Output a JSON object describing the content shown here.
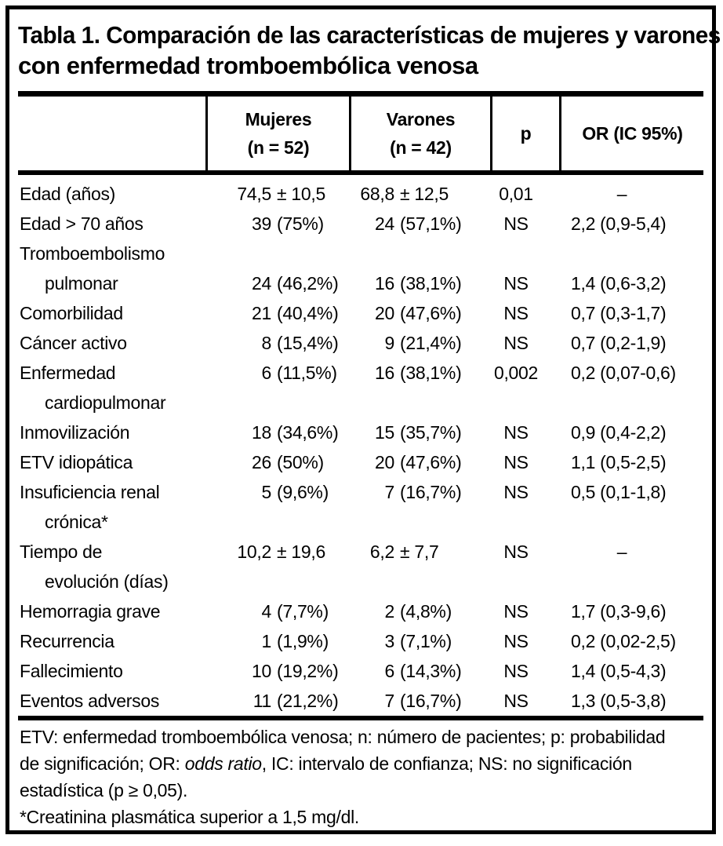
{
  "colors": {
    "text": "#000000",
    "background": "#ffffff",
    "rule": "#000000"
  },
  "title": {
    "lines": [
      "Tabla 1. Comparación de las características de mujeres y varones",
      "con enfermedad tromboembólica venosa"
    ]
  },
  "header": {
    "row_label_column": "",
    "columns": [
      {
        "id": "mujeres",
        "label_lines": [
          "Mujeres",
          "(n = 52)"
        ]
      },
      {
        "id": "varones",
        "label_lines": [
          "Varones",
          "(n = 42)"
        ]
      },
      {
        "id": "p",
        "label_lines": [
          "p"
        ]
      },
      {
        "id": "or",
        "label_lines": [
          "OR (IC 95%)"
        ]
      }
    ]
  },
  "rows": [
    {
      "label": "Edad (años)",
      "indent": false,
      "mujeres": {
        "num": "74,5",
        "rest": "± 10,5"
      },
      "varones": {
        "num": "68,8",
        "rest": "± 12,5"
      },
      "p": "0,01",
      "or": "–",
      "or_is_dash": true
    },
    {
      "label": "Edad > 70 años",
      "indent": false,
      "mujeres": {
        "num": "39",
        "rest": "(75%)"
      },
      "varones": {
        "num": "24",
        "rest": "(57,1%)"
      },
      "p": "NS",
      "or": "2,2 (0,9-5,4)"
    },
    {
      "label": "Tromboembolismo",
      "indent": false
    },
    {
      "label": "pulmonar",
      "indent": true,
      "mujeres": {
        "num": "24",
        "rest": "(46,2%)"
      },
      "varones": {
        "num": "16",
        "rest": "(38,1%)"
      },
      "p": "NS",
      "or": "1,4 (0,6-3,2)"
    },
    {
      "label": "Comorbilidad",
      "indent": false,
      "mujeres": {
        "num": "21",
        "rest": "(40,4%)"
      },
      "varones": {
        "num": "20",
        "rest": "(47,6%)"
      },
      "p": "NS",
      "or": "0,7 (0,3-1,7)"
    },
    {
      "label": "Cáncer activo",
      "indent": false,
      "mujeres": {
        "num": "8",
        "rest": "(15,4%)"
      },
      "varones": {
        "num": "9",
        "rest": "(21,4%)"
      },
      "p": "NS",
      "or": "0,7 (0,2-1,9)"
    },
    {
      "label": "Enfermedad",
      "indent": false,
      "mujeres": {
        "num": "6",
        "rest": "(11,5%)"
      },
      "varones": {
        "num": "16",
        "rest": "(38,1%)"
      },
      "p": "0,002",
      "or": "0,2 (0,07-0,6)"
    },
    {
      "label": "cardiopulmonar",
      "indent": true
    },
    {
      "label": "Inmovilización",
      "indent": false,
      "mujeres": {
        "num": "18",
        "rest": "(34,6%)"
      },
      "varones": {
        "num": "15",
        "rest": "(35,7%)"
      },
      "p": "NS",
      "or": "0,9 (0,4-2,2)"
    },
    {
      "label": "ETV idiopática",
      "indent": false,
      "mujeres": {
        "num": "26",
        "rest": "(50%)"
      },
      "varones": {
        "num": "20",
        "rest": "(47,6%)"
      },
      "p": "NS",
      "or": "1,1 (0,5-2,5)"
    },
    {
      "label": "Insuficiencia renal",
      "indent": false,
      "mujeres": {
        "num": "5",
        "rest": "(9,6%)"
      },
      "varones": {
        "num": "7",
        "rest": "(16,7%)"
      },
      "p": "NS",
      "or": "0,5 (0,1-1,8)"
    },
    {
      "label": "crónica*",
      "indent": true
    },
    {
      "label": "Tiempo de",
      "indent": false,
      "mujeres": {
        "num": "10,2",
        "rest": "± 19,6"
      },
      "varones": {
        "num": "6,2",
        "rest": "± 7,7"
      },
      "p": "NS",
      "or": "–",
      "or_is_dash": true
    },
    {
      "label": "evolución (días)",
      "indent": true
    },
    {
      "label": "Hemorragia grave",
      "indent": false,
      "mujeres": {
        "num": "4",
        "rest": "(7,7%)"
      },
      "varones": {
        "num": "2",
        "rest": "(4,8%)"
      },
      "p": "NS",
      "or": "1,7 (0,3-9,6)"
    },
    {
      "label": "Recurrencia",
      "indent": false,
      "mujeres": {
        "num": "1",
        "rest": "(1,9%)"
      },
      "varones": {
        "num": "3",
        "rest": "(7,1%)"
      },
      "p": "NS",
      "or": "0,2 (0,02-2,5)"
    },
    {
      "label": "Fallecimiento",
      "indent": false,
      "mujeres": {
        "num": "10",
        "rest": "(19,2%)"
      },
      "varones": {
        "num": "6",
        "rest": "(14,3%)"
      },
      "p": "NS",
      "or": "1,4 (0,5-4,3)"
    },
    {
      "label": "Eventos adversos",
      "indent": false,
      "mujeres": {
        "num": "11",
        "rest": "(21,2%)"
      },
      "varones": {
        "num": "7",
        "rest": "(16,7%)"
      },
      "p": "NS",
      "or": "1,3 (0,5-3,8)"
    }
  ],
  "footnotes": {
    "lines": [
      [
        {
          "t": "ETV: enfermedad tromboembólica venosa; n: número de pacientes; p: probabilidad"
        }
      ],
      [
        {
          "t": "de significación; OR: "
        },
        {
          "t": "odds ratio",
          "italic": true
        },
        {
          "t": ", IC: intervalo de confianza; NS: no significación"
        }
      ],
      [
        {
          "t": "estadística (p ≥ 0,05)."
        }
      ],
      [
        {
          "t": "*Creatinina plasmática superior a 1,5 mg/dl."
        }
      ]
    ]
  }
}
